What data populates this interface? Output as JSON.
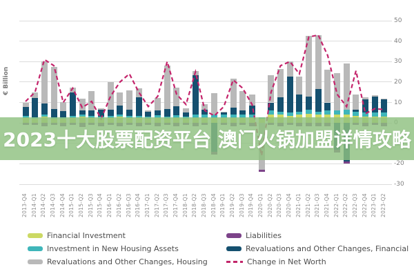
{
  "banner": {
    "title": "2023十大股票配资平台 澳门火锅加盟详情攻略"
  },
  "axis": {
    "unit_label": "€ Billion",
    "right_ticks": [
      50,
      40,
      30,
      20,
      10,
      0,
      -10,
      -20,
      -30
    ]
  },
  "colors": {
    "financial_investment": "#ccd964",
    "new_housing": "#3fb6ba",
    "reval_financial": "#15506f",
    "reval_housing": "#b9b9b9",
    "liabilities": "#7c4389",
    "net_worth_line": "#c4246b",
    "banner_green": "#8fc180",
    "grid": "#dcdcdc"
  },
  "legend": {
    "col1": [
      {
        "key": "financial_investment",
        "label": "Financial Investment",
        "type": "box"
      },
      {
        "key": "new_housing",
        "label": "Investment in New Housing Assets",
        "type": "box"
      },
      {
        "key": "reval_housing",
        "label": "Revaluations and Other Changes, Housing",
        "type": "box"
      }
    ],
    "col2": [
      {
        "key": "liabilities",
        "label": "Liabilities",
        "type": "box"
      },
      {
        "key": "reval_financial",
        "label": "Revaluations and Other Changes, Financial",
        "type": "box"
      },
      {
        "key": "net_worth_line",
        "label": "Change in Net Worth",
        "type": "dash"
      }
    ]
  },
  "chart_data": {
    "type": "bar",
    "subtype": "stacked-bars-with-dashed-line",
    "ylabel": "€ Billion",
    "ylim": [
      -30,
      50
    ],
    "grid": true,
    "legend_position": "bottom",
    "categories": [
      "2013-Q4",
      "2014-Q1",
      "2014-Q2",
      "2014-Q3",
      "2014-Q4",
      "2015-Q1",
      "2015-Q2",
      "2015-Q3",
      "2015-Q4",
      "2016-Q1",
      "2016-Q2",
      "2016-Q3",
      "2016-Q4",
      "2017-Q1",
      "2017-Q2",
      "2017-Q3",
      "2017-Q4",
      "2018-Q1",
      "2018-Q2",
      "2018-Q3",
      "2018-Q4",
      "2019-Q1",
      "2019-Q2",
      "2019-Q3",
      "2019-Q4",
      "2020-Q1",
      "2020-Q2",
      "2020-Q3",
      "2020-Q4",
      "2021-Q1",
      "2021-Q2",
      "2021-Q3",
      "2021-Q4",
      "2022-Q1",
      "2022-Q2",
      "2022-Q3",
      "2022-Q4",
      "2023-Q1",
      "2023-Q2"
    ],
    "series": [
      {
        "key": "financial_investment",
        "name": "Financial Investment",
        "values": [
          2.5,
          2,
          3,
          2,
          2,
          2.5,
          3,
          2.5,
          2,
          2.5,
          3,
          2.5,
          2.5,
          2,
          2.5,
          2,
          2.5,
          2,
          2.5,
          2.5,
          2.5,
          2.5,
          2.5,
          2.5,
          2.5,
          2,
          4,
          4,
          3.5,
          4,
          4.5,
          4,
          4,
          4,
          4,
          3.5,
          3,
          3,
          3
        ]
      },
      {
        "key": "new_housing",
        "name": "Investment in New Housing Assets",
        "values": [
          0.8,
          0.8,
          1,
          0.8,
          0.8,
          0.8,
          1,
          1,
          1,
          1,
          1,
          1,
          1,
          1,
          1.2,
          1.2,
          1.2,
          1.2,
          1.5,
          1.5,
          1.5,
          1.5,
          1.5,
          1.5,
          1.5,
          0.7,
          2,
          1.5,
          1.5,
          1.5,
          2,
          1.5,
          2,
          2,
          2.5,
          2,
          2,
          2,
          2
        ]
      },
      {
        "key": "reval_financial",
        "name": "Revaluations and Other Changes, Financial",
        "values": [
          4.5,
          9.5,
          5.5,
          4,
          3,
          11.5,
          2,
          2.5,
          3.5,
          3,
          4.5,
          3,
          9,
          2.5,
          2.5,
          3.5,
          4.5,
          2,
          19.5,
          2.5,
          -14,
          1,
          3.5,
          2,
          4.5,
          0,
          4,
          7,
          17.5,
          8.5,
          6.5,
          11,
          4,
          -13,
          -19,
          1,
          6.5,
          8,
          6.5
        ]
      },
      {
        "key": "reval_housing",
        "name": "Revaluations and Other Changes, Housing",
        "values": [
          2,
          2.5,
          20.5,
          20.5,
          4.5,
          2.5,
          6,
          9.5,
          0.5,
          13.5,
          6.5,
          9.5,
          4.5,
          0.5,
          6,
          21.5,
          9,
          2,
          2,
          2.5,
          10.5,
          0.5,
          14,
          9.5,
          5.5,
          -23,
          13.5,
          14,
          7.5,
          8.5,
          29.5,
          26.5,
          16,
          18.5,
          22.5,
          7.5,
          1,
          0.5,
          0.5
        ]
      },
      {
        "key": "liabilities",
        "name": "Liabilities",
        "values": [
          -1,
          -1,
          -1.5,
          -1,
          -1.5,
          -1,
          -2,
          -1,
          -1.5,
          -1,
          -1.5,
          -1,
          -1.5,
          -1,
          -1.5,
          -1,
          -1.5,
          -1,
          -1.5,
          -1,
          -1.5,
          -1,
          -1.5,
          -1,
          -1.5,
          -1,
          -1,
          -1.5,
          -1,
          -1.5,
          -1.5,
          -1.5,
          -1.5,
          -1.5,
          -1,
          -1,
          -1.5,
          -1,
          -1.5
        ]
      }
    ],
    "line_series": {
      "key": "net_worth_line",
      "name": "Change in Net Worth",
      "style": "dashed",
      "values": [
        10.5,
        15,
        31,
        28,
        10,
        17,
        7.5,
        10.5,
        2,
        13,
        20,
        24,
        15,
        8,
        13,
        30,
        14,
        9,
        25,
        6,
        3.5,
        8,
        21,
        17,
        9,
        -16,
        15,
        28,
        30,
        24,
        42,
        43,
        33,
        14,
        8,
        25.5,
        4.5,
        7,
        6.5
      ]
    }
  }
}
